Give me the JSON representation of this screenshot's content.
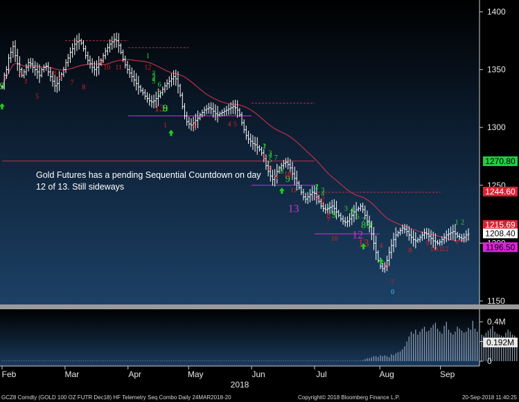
{
  "annotation": "Gold Futures has a pending Sequential Countdown on day 12 of 13.   Still sideways",
  "footer": {
    "left": "GCZ8 Comdty (GOLD 100 OZ FUTR  Dec18) HF Telemetry Seq Combo  Daily 24MAR2018-20",
    "center": "Copyright© 2018 Bloomberg Finance L.P.",
    "right": "20-Sep-2018 11:40:25"
  },
  "colors": {
    "background_top": "#000000",
    "background_bottom": "#1b3f63",
    "bars": "#ffffff",
    "moving_average": "#c0304a",
    "level_line": "#c0304a",
    "buy_count": "#33dd33",
    "sell_count": "#dd2222",
    "countdown": "#cc33cc",
    "arrow_up": "#22cc22"
  },
  "chart_data": [
    {
      "type": "ohlc",
      "ylim": [
        1150,
        1400
      ],
      "y_ticks": [
        "1400",
        "1350",
        "1300",
        "1250",
        "1200",
        "1150"
      ],
      "x_tick_labels": [
        "Feb",
        "Mar",
        "Apr",
        "May",
        "Jun",
        "Jul",
        "Aug",
        "Sep"
      ],
      "x_year_label": "2018",
      "close_series": [
        1335,
        1345,
        1350,
        1360,
        1365,
        1370,
        1362,
        1355,
        1350,
        1345,
        1348,
        1352,
        1356,
        1355,
        1352,
        1350,
        1348,
        1345,
        1350,
        1352,
        1353,
        1348,
        1344,
        1340,
        1336,
        1338,
        1342,
        1346,
        1350,
        1356,
        1360,
        1365,
        1368,
        1372,
        1374,
        1375,
        1373,
        1368,
        1362,
        1358,
        1355,
        1352,
        1350,
        1352,
        1355,
        1358,
        1362,
        1366,
        1369,
        1372,
        1374,
        1376,
        1375,
        1371,
        1365,
        1359,
        1354,
        1350,
        1347,
        1344,
        1341,
        1338,
        1335,
        1332,
        1330,
        1327,
        1325,
        1323,
        1322,
        1323,
        1325,
        1327,
        1330,
        1333,
        1336,
        1338,
        1340,
        1342,
        1344,
        1342,
        1336,
        1328,
        1318,
        1310,
        1305,
        1303,
        1302,
        1304,
        1306,
        1308,
        1311,
        1313,
        1315,
        1316,
        1317,
        1316,
        1314,
        1312,
        1311,
        1312,
        1313,
        1314,
        1315,
        1316,
        1317,
        1318,
        1317,
        1315,
        1311,
        1304,
        1298,
        1293,
        1290,
        1288,
        1286,
        1285,
        1283,
        1281,
        1278,
        1273,
        1267,
        1262,
        1258,
        1255,
        1258,
        1262,
        1265,
        1267,
        1269,
        1270,
        1268,
        1265,
        1260,
        1256,
        1252,
        1248,
        1244,
        1240,
        1238,
        1240,
        1242,
        1244,
        1243,
        1240,
        1236,
        1232,
        1230,
        1229,
        1230,
        1231,
        1232,
        1230,
        1227,
        1224,
        1221,
        1219,
        1218,
        1219,
        1221,
        1224,
        1227,
        1229,
        1230,
        1232,
        1229,
        1224,
        1219,
        1214,
        1208,
        1200,
        1192,
        1185,
        1180,
        1178,
        1180,
        1185,
        1192,
        1198,
        1203,
        1207,
        1209,
        1211,
        1213,
        1212,
        1210,
        1207,
        1205,
        1203,
        1202,
        1203,
        1205,
        1207,
        1209,
        1208,
        1206,
        1204,
        1202,
        1201,
        1200,
        1201,
        1203,
        1205,
        1207,
        1208,
        1209,
        1210,
        1208,
        1206,
        1205,
        1204,
        1205,
        1207,
        1208
      ],
      "moving_average": {
        "line_color": "#c0304a",
        "start": 1340,
        "peak": 1357,
        "end": 1208
      },
      "levels": [
        {
          "value": 1375,
          "color": "#c0304a",
          "style": "dashed",
          "x_range": [
            "Mar",
            "Apr"
          ]
        },
        {
          "value": 1369,
          "color": "#c0304a",
          "style": "dashed",
          "x_range": [
            "Apr",
            "May"
          ]
        },
        {
          "value": 1321,
          "color": "#c0304a",
          "style": "dashed",
          "x_range": [
            "Jun",
            "Jul"
          ]
        },
        {
          "value": 1310,
          "color": "#cc33cc",
          "style": "solid",
          "x_range": [
            "Apr",
            "Jun"
          ]
        },
        {
          "value": 1271,
          "color": "#c0304a",
          "style": "solid",
          "x_range": [
            "Feb",
            "Jul"
          ]
        },
        {
          "value": 1250,
          "color": "#cc33cc",
          "style": "solid",
          "x_range": [
            "Jun",
            "Jul"
          ]
        },
        {
          "value": 1244,
          "color": "#c0304a",
          "style": "dashed",
          "x_range": [
            "Jul",
            "Sep"
          ]
        },
        {
          "value": 1208,
          "color": "#cc33cc",
          "style": "solid",
          "x_range": [
            "Jul",
            "Aug"
          ]
        }
      ],
      "price_labels": [
        {
          "text": "1270.80",
          "value": 1270.8,
          "bg": "#22cc44",
          "fg": "#000000"
        },
        {
          "text": "1244.60",
          "value": 1244.6,
          "bg": "#dd2233",
          "fg": "#ffffff"
        },
        {
          "text": "1215.69",
          "value": 1215.69,
          "bg": "#dd2233",
          "fg": "#ffffff"
        },
        {
          "text": "1208.40",
          "value": 1208.4,
          "bg": "#ffffff",
          "fg": "#000000"
        },
        {
          "text": "1196.50",
          "value": 1196.5,
          "bg": "#dd22dd",
          "fg": "#000000"
        }
      ],
      "sequential_labels": [
        {
          "t": "9",
          "c": "green",
          "x": 0,
          "v": 1333,
          "s": 15
        },
        {
          "t": "2",
          "c": "red",
          "x": 3,
          "v": 1345,
          "s": 10
        },
        {
          "t": "3",
          "c": "red",
          "x": 4,
          "v": 1338,
          "s": 10
        },
        {
          "t": "5",
          "c": "red",
          "x": 6,
          "v": 1325,
          "s": 10
        },
        {
          "t": "8",
          "c": "red",
          "x": 9,
          "v": 1345,
          "s": 10
        },
        {
          "t": "4",
          "c": "red",
          "x": 10,
          "v": 1341,
          "s": 10
        },
        {
          "t": "7",
          "c": "red",
          "x": 12,
          "v": 1337,
          "s": 10
        },
        {
          "t": "8",
          "c": "red",
          "x": 14,
          "v": 1333,
          "s": 10
        },
        {
          "t": "9",
          "c": "red",
          "x": 17,
          "v": 1355,
          "s": 10
        },
        {
          "t": "10",
          "c": "red",
          "x": 18,
          "v": 1350,
          "s": 10
        },
        {
          "t": "11",
          "c": "red",
          "x": 20,
          "v": 1350,
          "s": 10
        },
        {
          "t": "1",
          "c": "green",
          "x": 25,
          "v": 1360,
          "s": 10
        },
        {
          "t": "12",
          "c": "red",
          "x": 25,
          "v": 1350,
          "s": 10
        },
        {
          "t": "2",
          "c": "green",
          "x": 26,
          "v": 1345,
          "s": 10
        },
        {
          "t": "3",
          "c": "green",
          "x": 26,
          "v": 1343,
          "s": 10
        },
        {
          "t": "4",
          "c": "green",
          "x": 26,
          "v": 1340,
          "s": 10
        },
        {
          "t": "5",
          "c": "green",
          "x": 26,
          "v": 1338,
          "s": 10
        },
        {
          "t": "6",
          "c": "green",
          "x": 27,
          "v": 1335,
          "s": 10
        },
        {
          "t": "+",
          "c": "red",
          "x": 27,
          "v": 1330,
          "s": 10
        },
        {
          "t": "7",
          "c": "green",
          "x": 27,
          "v": 1327,
          "s": 10
        },
        {
          "t": "13",
          "c": "red",
          "x": 27,
          "v": 1314,
          "s": 15
        },
        {
          "t": "8",
          "c": "green",
          "x": 28,
          "v": 1314,
          "s": 15
        },
        {
          "t": "9",
          "c": "green",
          "x": 28,
          "v": 1314,
          "s": 15
        },
        {
          "t": "1",
          "c": "red",
          "x": 28,
          "v": 1300,
          "s": 10
        },
        {
          "t": "2",
          "c": "red",
          "x": 33,
          "v": 1301,
          "s": 10
        },
        {
          "t": "3",
          "c": "red",
          "x": 33,
          "v": 1298,
          "s": 10
        },
        {
          "t": "4",
          "c": "red",
          "x": 39,
          "v": 1301,
          "s": 10
        },
        {
          "t": "5",
          "c": "red",
          "x": 40,
          "v": 1301,
          "s": 10
        },
        {
          "t": "1",
          "c": "green",
          "x": 45,
          "v": 1282,
          "s": 10
        },
        {
          "t": "2",
          "c": "green",
          "x": 45,
          "v": 1282,
          "s": 10
        },
        {
          "t": "3",
          "c": "green",
          "x": 46,
          "v": 1276,
          "s": 10
        },
        {
          "t": "4",
          "c": "green",
          "x": 46,
          "v": 1274,
          "s": 10
        },
        {
          "t": "5",
          "c": "green",
          "x": 46,
          "v": 1270,
          "s": 10
        },
        {
          "t": "6",
          "c": "red",
          "x": 45,
          "v": 1273,
          "s": 10
        },
        {
          "t": "7",
          "c": "green",
          "x": 47,
          "v": 1272,
          "s": 10
        },
        {
          "t": "8",
          "c": "red",
          "x": 46,
          "v": 1263,
          "s": 10
        },
        {
          "t": "9",
          "c": "red",
          "x": 47,
          "v": 1255,
          "s": 10
        },
        {
          "t": "8",
          "c": "green",
          "x": 48,
          "v": 1260,
          "s": 10
        },
        {
          "t": "9",
          "c": "green",
          "x": 49,
          "v": 1253,
          "s": 14
        },
        {
          "t": "10",
          "c": "red",
          "x": 49,
          "v": 1258,
          "s": 10
        },
        {
          "t": "11",
          "c": "red",
          "x": 50,
          "v": 1244,
          "s": 10
        },
        {
          "t": "12",
          "c": "red",
          "x": 49,
          "v": 1257,
          "s": 10
        },
        {
          "t": "13",
          "c": "magenta",
          "x": 50,
          "v": 1227,
          "s": 16
        },
        {
          "t": "1",
          "c": "green",
          "x": 54,
          "v": 1247,
          "s": 10
        },
        {
          "t": "2",
          "c": "green",
          "x": 54,
          "v": 1247,
          "s": 10
        },
        {
          "t": "3",
          "c": "green",
          "x": 55,
          "v": 1244,
          "s": 10
        },
        {
          "t": "4",
          "c": "green",
          "x": 55,
          "v": 1241,
          "s": 10
        },
        {
          "t": "4",
          "c": "red",
          "x": 54,
          "v": 1238,
          "s": 10
        },
        {
          "t": "5",
          "c": "red",
          "x": 55,
          "v": 1238,
          "s": 10
        },
        {
          "t": "6",
          "c": "red",
          "x": 55,
          "v": 1233,
          "s": 10
        },
        {
          "t": "7",
          "c": "green",
          "x": 56,
          "v": 1228,
          "s": 10
        },
        {
          "t": "8",
          "c": "red",
          "x": 56,
          "v": 1222,
          "s": 10
        },
        {
          "t": "9",
          "c": "green",
          "x": 57,
          "v": 1222,
          "s": 15
        },
        {
          "t": "7",
          "c": "red",
          "x": 56,
          "v": 1218,
          "s": 10
        },
        {
          "t": "10",
          "c": "red",
          "x": 57,
          "v": 1202,
          "s": 10
        },
        {
          "t": "3",
          "c": "green",
          "x": 59,
          "v": 1228,
          "s": 10
        },
        {
          "t": "4",
          "c": "green",
          "x": 60,
          "v": 1227,
          "s": 10
        },
        {
          "t": "5",
          "c": "green",
          "x": 60,
          "v": 1223,
          "s": 10
        },
        {
          "t": "6",
          "c": "green",
          "x": 61,
          "v": 1221,
          "s": 10
        },
        {
          "t": "7",
          "c": "green",
          "x": 62,
          "v": 1218,
          "s": 10
        },
        {
          "t": "8",
          "c": "green",
          "x": 62,
          "v": 1213,
          "s": 14
        },
        {
          "t": "9",
          "c": "green",
          "x": 63,
          "v": 1213,
          "s": 14
        },
        {
          "t": "12",
          "c": "magenta",
          "x": 61,
          "v": 1204,
          "s": 16
        },
        {
          "t": "13",
          "c": "red",
          "x": 62,
          "v": 1197,
          "s": 16
        },
        {
          "t": "4",
          "c": "red",
          "x": 65,
          "v": 1196,
          "s": 10
        },
        {
          "t": "6",
          "c": "red",
          "x": 66,
          "v": 1178,
          "s": 10
        },
        {
          "t": "7",
          "c": "red",
          "x": 67,
          "v": 1164,
          "s": 10
        },
        {
          "t": "0",
          "c": "cyan",
          "x": 67,
          "v": 1156,
          "s": 10
        },
        {
          "t": "8",
          "c": "red",
          "x": 70,
          "v": 1192,
          "s": 10
        },
        {
          "t": "9",
          "c": "red",
          "x": 73,
          "v": 1198,
          "s": 10
        },
        {
          "t": "10",
          "c": "red",
          "x": 74,
          "v": 1193,
          "s": 10
        },
        {
          "t": "11",
          "c": "red",
          "x": 75,
          "v": 1193,
          "s": 10
        },
        {
          "t": "12",
          "c": "red",
          "x": 76,
          "v": 1193,
          "s": 10
        },
        {
          "t": "+",
          "c": "red",
          "x": 78,
          "v": 1198,
          "s": 10
        },
        {
          "t": "1",
          "c": "green",
          "x": 78,
          "v": 1216,
          "s": 10
        },
        {
          "t": "2",
          "c": "green",
          "x": 79,
          "v": 1216,
          "s": 10
        }
      ],
      "up_arrows": [
        {
          "x": 0,
          "v": 1318
        },
        {
          "x": 29,
          "v": 1295
        },
        {
          "x": 48,
          "v": 1245
        },
        {
          "x": 62,
          "v": 1197
        },
        {
          "x": 65,
          "v": 1184
        }
      ]
    },
    {
      "type": "bar",
      "name": "Volume",
      "ylim": [
        0,
        0.45
      ],
      "y_ticks": [
        "0.4M",
        "0.2M",
        "0"
      ],
      "last_label": "0.192M",
      "values": [
        0.005,
        0.005,
        0.005,
        0.005,
        0.005,
        0.005,
        0.005,
        0.005,
        0.005,
        0.005,
        0.005,
        0.005,
        0.005,
        0.005,
        0.005,
        0.005,
        0.005,
        0.005,
        0.005,
        0.005,
        0.005,
        0.005,
        0.005,
        0.005,
        0.005,
        0.005,
        0.005,
        0.005,
        0.005,
        0.005,
        0.005,
        0.005,
        0.005,
        0.005,
        0.005,
        0.005,
        0.005,
        0.005,
        0.005,
        0.005,
        0.005,
        0.005,
        0.005,
        0.005,
        0.005,
        0.005,
        0.005,
        0.005,
        0.005,
        0.005,
        0.005,
        0.005,
        0.005,
        0.005,
        0.005,
        0.005,
        0.005,
        0.005,
        0.005,
        0.005,
        0.005,
        0.005,
        0.005,
        0.005,
        0.005,
        0.005,
        0.005,
        0.005,
        0.005,
        0.005,
        0.005,
        0.005,
        0.005,
        0.005,
        0.005,
        0.005,
        0.005,
        0.005,
        0.005,
        0.005,
        0.005,
        0.005,
        0.005,
        0.005,
        0.005,
        0.005,
        0.005,
        0.005,
        0.005,
        0.005,
        0.005,
        0.005,
        0.005,
        0.005,
        0.005,
        0.005,
        0.005,
        0.005,
        0.005,
        0.005,
        0.005,
        0.005,
        0.005,
        0.005,
        0.005,
        0.005,
        0.005,
        0.005,
        0.005,
        0.005,
        0.005,
        0.005,
        0.005,
        0.005,
        0.005,
        0.005,
        0.005,
        0.005,
        0.005,
        0.005,
        0.005,
        0.005,
        0.005,
        0.005,
        0.005,
        0.005,
        0.005,
        0.005,
        0.005,
        0.005,
        0.005,
        0.005,
        0.005,
        0.005,
        0.005,
        0.005,
        0.005,
        0.005,
        0.005,
        0.005,
        0.005,
        0.005,
        0.005,
        0.005,
        0.005,
        0.005,
        0.005,
        0.005,
        0.005,
        0.005,
        0.005,
        0.005,
        0.005,
        0.005,
        0.005,
        0.005,
        0.005,
        0.005,
        0.005,
        0.005,
        0.005,
        0.005,
        0.005,
        0.005,
        0.01,
        0.02,
        0.03,
        0.03,
        0.04,
        0.05,
        0.05,
        0.04,
        0.06,
        0.05,
        0.06,
        0.05,
        0.04,
        0.07,
        0.06,
        0.08,
        0.09,
        0.1,
        0.12,
        0.15,
        0.2,
        0.25,
        0.3,
        0.28,
        0.32,
        0.27,
        0.3,
        0.33,
        0.35,
        0.3,
        0.31,
        0.34,
        0.37,
        0.39,
        0.33,
        0.3,
        0.28,
        0.36,
        0.4,
        0.32,
        0.29,
        0.27,
        0.3,
        0.35,
        0.33,
        0.31,
        0.29,
        0.3,
        0.34,
        0.32,
        0.41,
        0.33,
        0.3,
        0.28,
        0.27,
        0.26,
        0.29,
        0.31,
        0.33,
        0.36,
        0.3,
        0.28,
        0.27,
        0.26,
        0.25,
        0.29,
        0.32,
        0.3,
        0.27,
        0.26,
        0.19
      ]
    }
  ]
}
